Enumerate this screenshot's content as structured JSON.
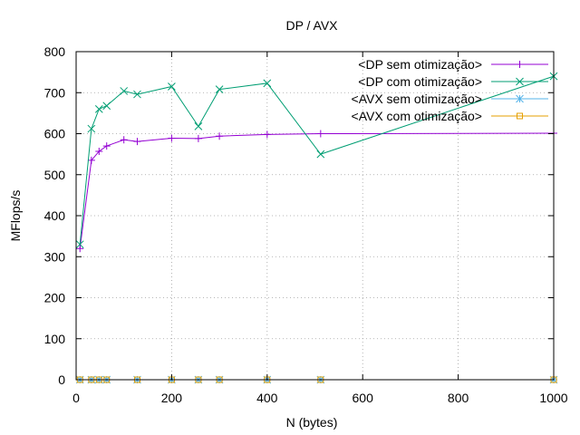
{
  "chart_data": {
    "type": "line",
    "title": "DP / AVX",
    "xlabel": "N (bytes)",
    "ylabel": "MFlops/s",
    "xlim": [
      0,
      1000
    ],
    "ylim": [
      0,
      800
    ],
    "xticks": [
      0,
      200,
      400,
      600,
      800,
      1000
    ],
    "yticks": [
      0,
      100,
      200,
      300,
      400,
      500,
      600,
      700,
      800
    ],
    "grid": true,
    "legend_position": "top-right",
    "series": [
      {
        "name": "<DP sem otimização>",
        "color": "#9400d3",
        "marker": "plus",
        "x": [
          8,
          32,
          48,
          64,
          100,
          128,
          200,
          256,
          300,
          400,
          512,
          1000
        ],
        "y": [
          320,
          535,
          557,
          570,
          585,
          581,
          589,
          588,
          594,
          598,
          600,
          601
        ]
      },
      {
        "name": "<DP com otimização>",
        "color": "#009e73",
        "marker": "x",
        "x": [
          8,
          32,
          48,
          64,
          100,
          128,
          200,
          256,
          300,
          400,
          512,
          1000
        ],
        "y": [
          330,
          612,
          660,
          668,
          704,
          696,
          715,
          618,
          708,
          723,
          550,
          740
        ]
      },
      {
        "name": "<AVX sem otimização>",
        "color": "#56b4e9",
        "marker": "star",
        "x": [
          8,
          32,
          48,
          64,
          128,
          200,
          256,
          300,
          400,
          512,
          1000
        ],
        "y": [
          0,
          0,
          0,
          0,
          0,
          0,
          0,
          0,
          0,
          0,
          0
        ]
      },
      {
        "name": "<AVX com otimização>",
        "color": "#e69f00",
        "marker": "square",
        "x": [
          8,
          32,
          48,
          64,
          128,
          200,
          256,
          300,
          400,
          512,
          1000
        ],
        "y": [
          0,
          0,
          0,
          0,
          0,
          0,
          0,
          0,
          0,
          0,
          0
        ]
      }
    ]
  }
}
